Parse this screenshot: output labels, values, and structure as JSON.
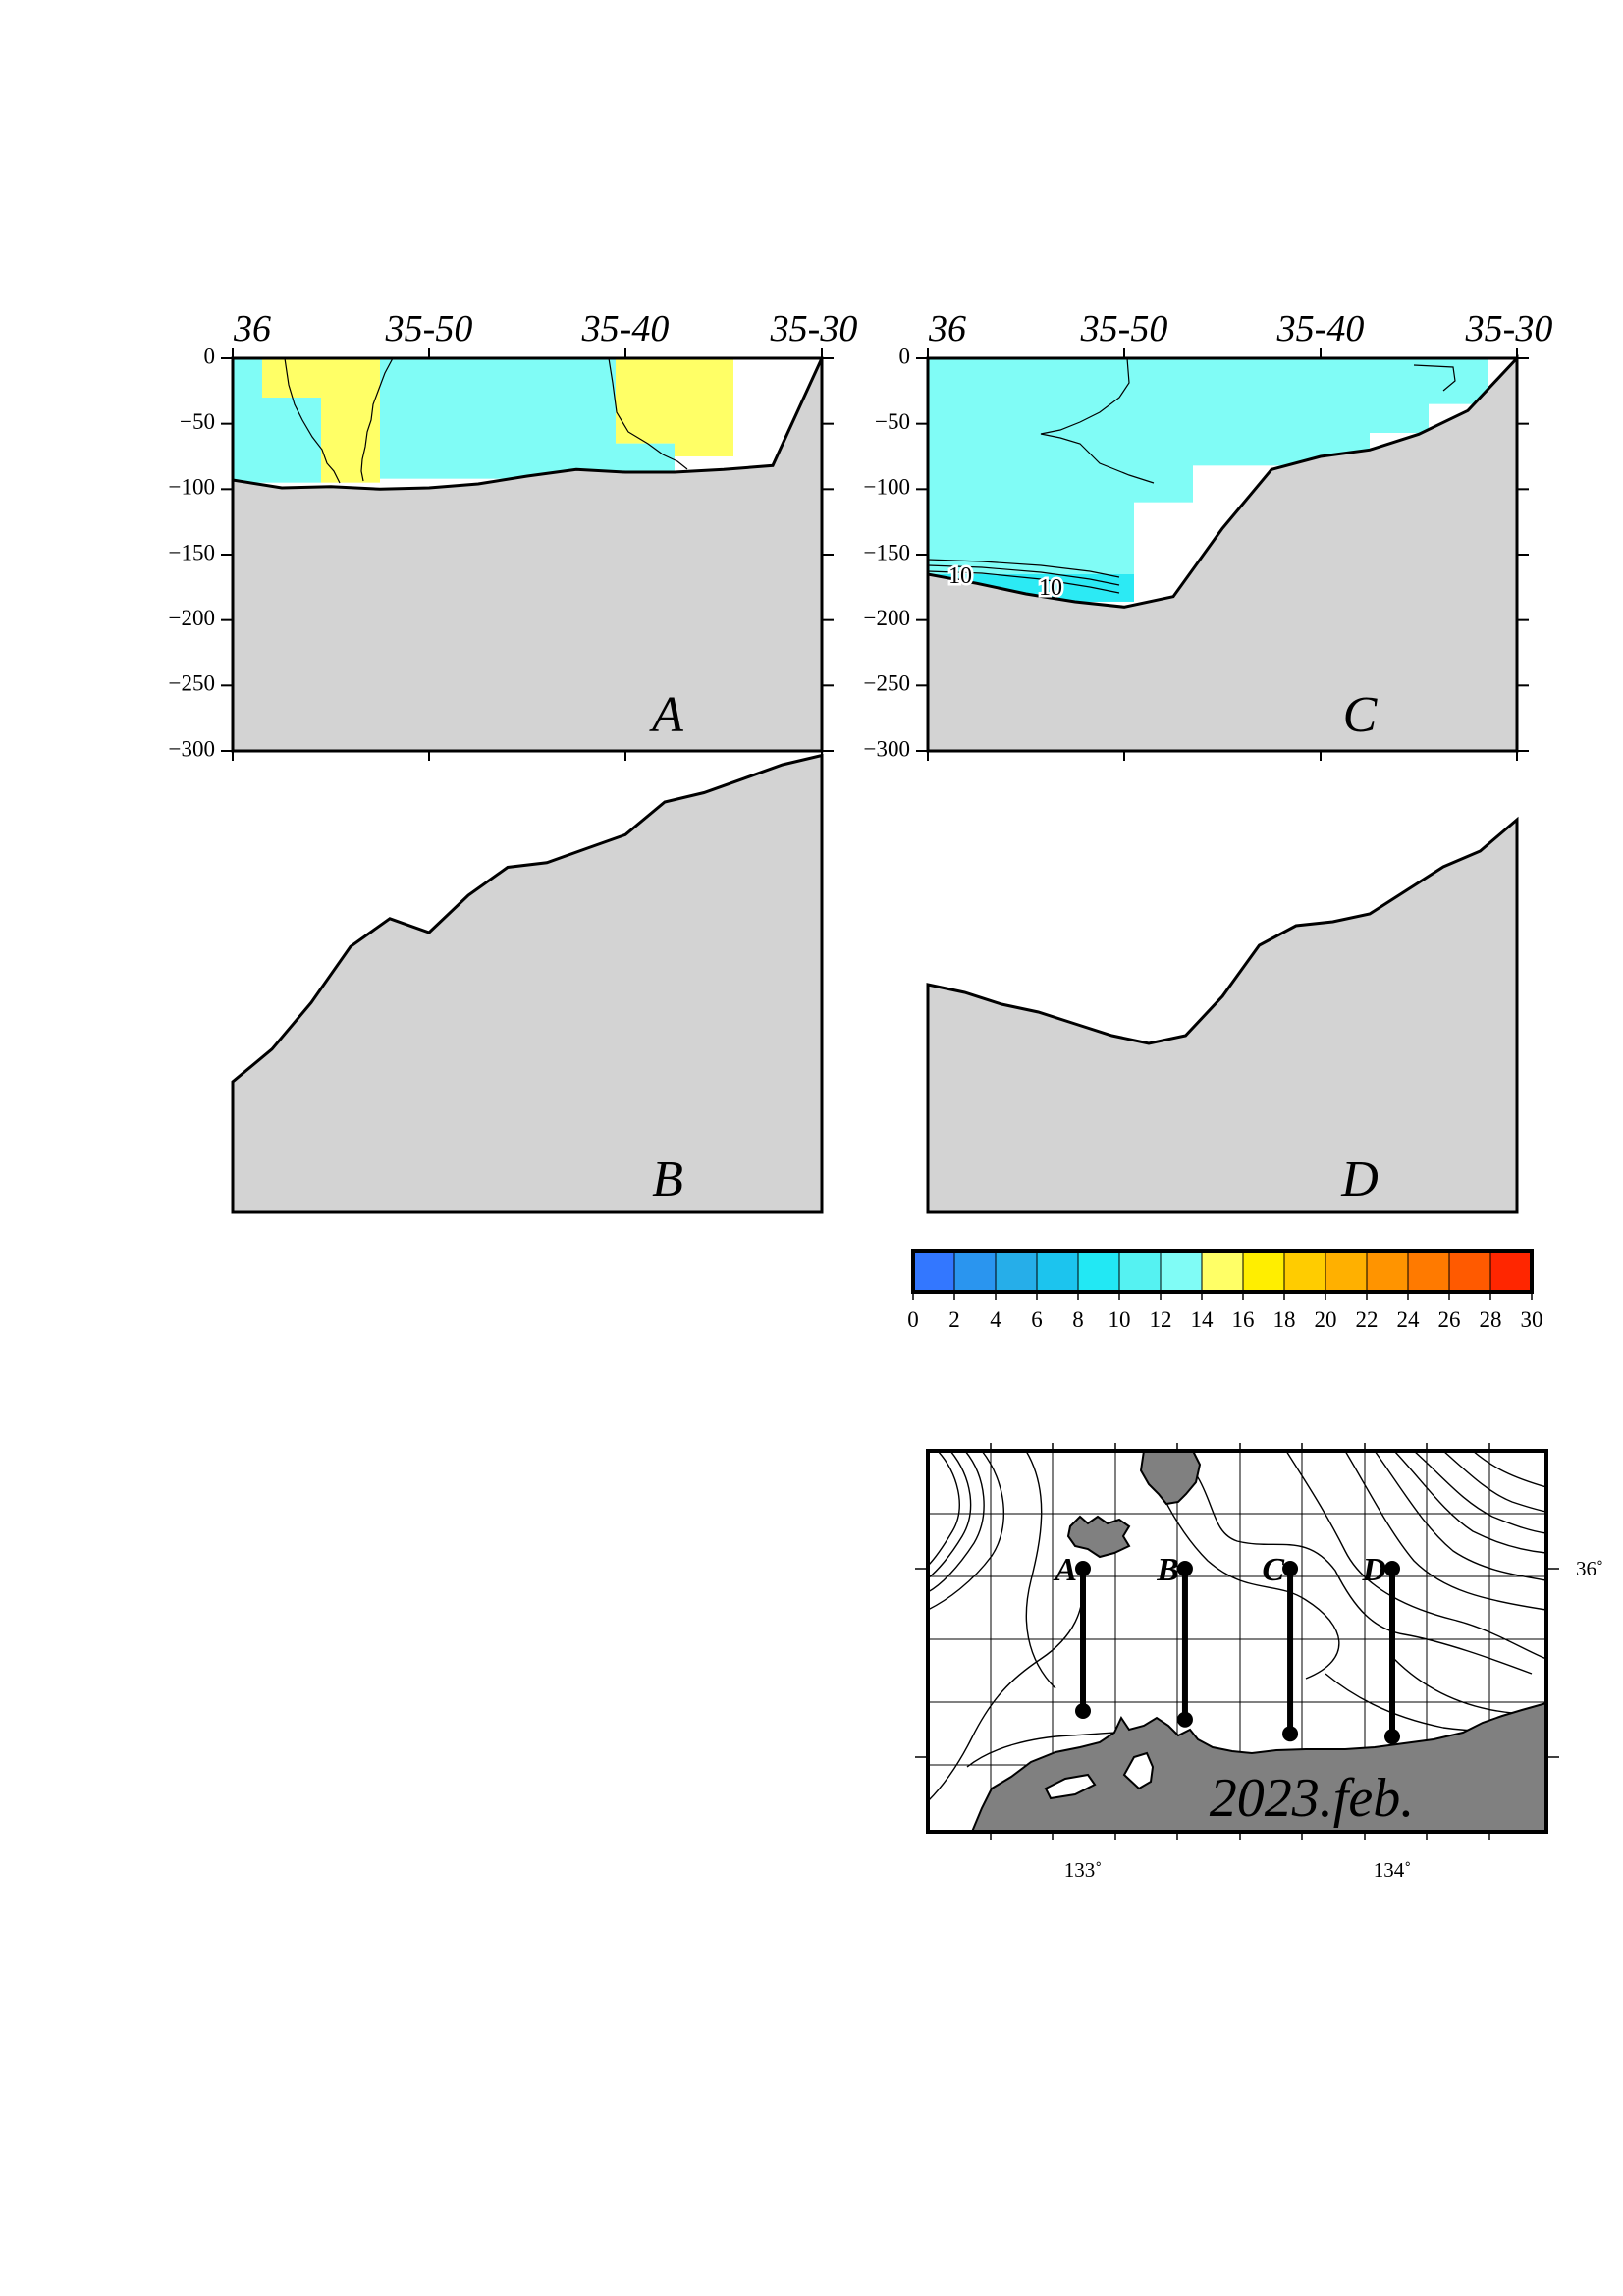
{
  "chart_data": [
    {
      "type": "heatmap",
      "panel": "A",
      "x_tick_labels": [
        "36",
        "35-50",
        "35-40",
        "35-30"
      ],
      "y_tick_labels": [
        "0",
        "−50",
        "−100",
        "−150",
        "−200",
        "−250",
        "−300"
      ],
      "ylim": [
        -300,
        0
      ],
      "bathymetry_depth": [
        -93,
        -99,
        -98,
        -100,
        -99,
        -96,
        -90,
        -85,
        -87,
        -87,
        -85,
        -82,
        0
      ],
      "cells": [
        {
          "x": [
            0.0,
            0.05
          ],
          "y": [
            0,
            -30
          ],
          "value": 13
        },
        {
          "x": [
            0.0,
            0.15
          ],
          "y": [
            -30,
            -95
          ],
          "value": 13
        },
        {
          "x": [
            0.05,
            0.15
          ],
          "y": [
            0,
            -30
          ],
          "value": 15
        },
        {
          "x": [
            0.15,
            0.25
          ],
          "y": [
            0,
            -95
          ],
          "value": 15
        },
        {
          "x": [
            0.25,
            0.65
          ],
          "y": [
            0,
            -92
          ],
          "value": 13
        },
        {
          "x": [
            0.65,
            0.75
          ],
          "y": [
            0,
            -65
          ],
          "value": 15
        },
        {
          "x": [
            0.65,
            0.75
          ],
          "y": [
            -65,
            -88
          ],
          "value": 13
        },
        {
          "x": [
            0.75,
            0.85
          ],
          "y": [
            0,
            -75
          ],
          "value": 15
        }
      ],
      "grid": false
    },
    {
      "type": "heatmap",
      "panel": "C",
      "x_tick_labels": [
        "36",
        "35-50",
        "35-40",
        "35-30"
      ],
      "y_tick_labels": [
        "0",
        "−50",
        "−100",
        "−150",
        "−200",
        "−250",
        "−300"
      ],
      "ylim": [
        -300,
        0
      ],
      "bathymetry_depth": [
        -165,
        -172,
        -180,
        -186,
        -190,
        -182,
        -130,
        -85,
        -75,
        -70,
        -58,
        -40,
        0
      ],
      "contour_labels": [
        "10",
        "10"
      ],
      "cells": [
        {
          "x": [
            0.0,
            0.35
          ],
          "y": [
            0,
            -185
          ],
          "value": 13
        },
        {
          "x": [
            0.35,
            0.45
          ],
          "y": [
            0,
            -110
          ],
          "value": 13
        },
        {
          "x": [
            0.45,
            0.75
          ],
          "y": [
            0,
            -82
          ],
          "value": 13
        },
        {
          "x": [
            0.75,
            0.85
          ],
          "y": [
            0,
            -57
          ],
          "value": 13
        },
        {
          "x": [
            0.85,
            0.95
          ],
          "y": [
            0,
            -35
          ],
          "value": 13
        }
      ],
      "grid": false
    },
    {
      "type": "area",
      "panel": "B",
      "bathymetry_depth_relative": [
        0.72,
        0.65,
        0.55,
        0.43,
        0.37,
        0.4,
        0.32,
        0.26,
        0.25,
        0.22,
        0.19,
        0.12,
        0.1,
        0.07,
        0.04,
        0.02
      ]
    },
    {
      "type": "area",
      "panel": "D",
      "bathymetry_depth_relative": [
        0.42,
        0.44,
        0.47,
        0.49,
        0.52,
        0.55,
        0.57,
        0.55,
        0.45,
        0.32,
        0.27,
        0.26,
        0.24,
        0.18,
        0.12,
        0.08,
        0.0
      ]
    },
    {
      "type": "colorbar",
      "ticks": [
        "0",
        "2",
        "4",
        "6",
        "8",
        "10",
        "12",
        "14",
        "16",
        "18",
        "20",
        "22",
        "24",
        "26",
        "28",
        "30"
      ],
      "colors": [
        "#3377ff",
        "#2a95ef",
        "#26aee9",
        "#1cc4ee",
        "#22e8f4",
        "#55f2f2",
        "#80fcf6",
        "#ffff66",
        "#ffee00",
        "#ffcc00",
        "#ffb000",
        "#ff9400",
        "#ff7a00",
        "#ff5a00",
        "#ff2600"
      ]
    },
    {
      "type": "map",
      "title": "2023.feb.",
      "lon_tick_labels": [
        "133˚",
        "134˚"
      ],
      "lat_tick_labels": [
        "36˚"
      ],
      "stations": [
        {
          "label": "A",
          "lon": 133.0,
          "lat_start": 36.0,
          "lat_end": 35.5
        },
        {
          "label": "B",
          "lon": 133.33,
          "lat_start": 36.0,
          "lat_end": 35.47
        },
        {
          "label": "C",
          "lon": 133.67,
          "lat_start": 36.0,
          "lat_end": 35.42
        },
        {
          "label": "D",
          "lon": 134.0,
          "lat_start": 36.0,
          "lat_end": 35.41
        }
      ]
    }
  ]
}
